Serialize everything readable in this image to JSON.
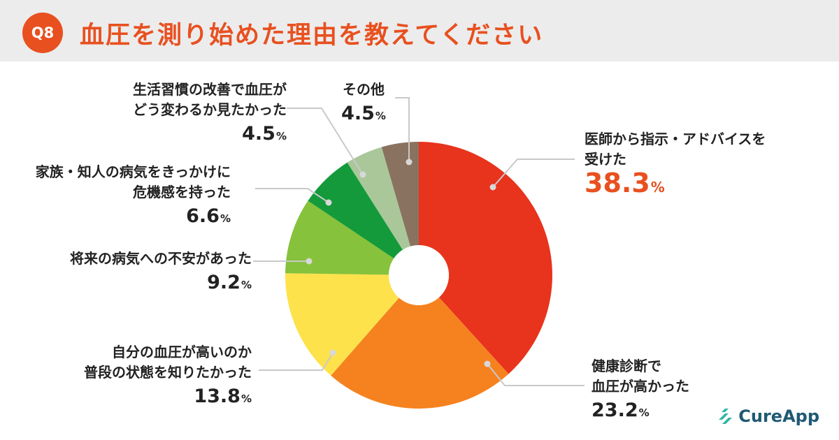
{
  "header": {
    "badge": "Q8",
    "title": "血圧を測り始めた理由を教えてください"
  },
  "brand": {
    "name": "CureApp",
    "logo_icon": "cureapp-logo-icon",
    "color": "#1f5a74"
  },
  "chart_data": {
    "type": "pie",
    "donut": true,
    "start_angle_deg": 0,
    "direction": "clockwise",
    "unit": "%",
    "slices": [
      {
        "label": "医師から指示・アドバイスを受けた",
        "lines": [
          "医師から指示・アドバイスを",
          "受けた"
        ],
        "value": 38.3,
        "display": "38.3",
        "color": "#e8331d"
      },
      {
        "label": "健康診断で血圧が高かった",
        "lines": [
          "健康診断で",
          "血圧が高かった"
        ],
        "value": 23.2,
        "display": "23.2",
        "color": "#f5821f"
      },
      {
        "label": "自分の血圧が高いのか普段の状態を知りたかった",
        "lines": [
          "自分の血圧が高いのか",
          "普段の状態を知りたかった"
        ],
        "value": 13.8,
        "display": "13.8",
        "color": "#fde24b"
      },
      {
        "label": "将来の病気への不安があった",
        "lines": [
          "将来の病気への不安があった"
        ],
        "value": 9.2,
        "display": "9.2",
        "color": "#86c23b"
      },
      {
        "label": "家族・知人の病気をきっかけに危機感を持った",
        "lines": [
          "家族・知人の病気をきっかけに",
          "危機感を持った"
        ],
        "value": 6.6,
        "display": "6.6",
        "color": "#149a3a"
      },
      {
        "label": "生活習慣の改善で血圧がどう変わるか見たかった",
        "lines": [
          "生活習慣の改善で血圧が",
          "どう変わるか見たかった"
        ],
        "value": 4.5,
        "display": "4.5",
        "color": "#aac79a"
      },
      {
        "label": "その他",
        "lines": [
          "その他"
        ],
        "value": 4.5,
        "display": "4.5",
        "color": "#8a7260"
      }
    ]
  }
}
